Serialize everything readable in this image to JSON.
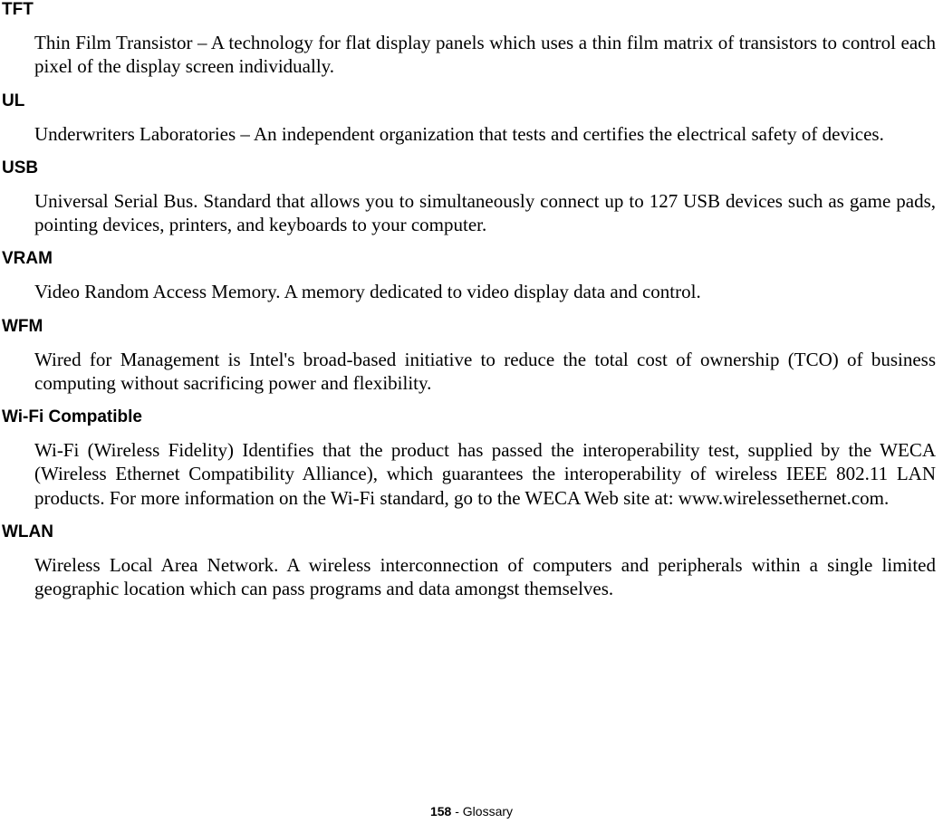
{
  "entries": [
    {
      "term": "TFT",
      "definition": "Thin Film Transistor – A technology for flat display panels which uses a thin film matrix of transistors to control each pixel of the display screen individually."
    },
    {
      "term": "UL",
      "definition": "Underwriters Laboratories – An independent organization that tests and certifies the electrical safety of devices."
    },
    {
      "term": "USB",
      "definition": "Universal Serial Bus. Standard that allows you to simultaneously connect up to 127 USB devices such as game pads, pointing devices, printers, and keyboards to your computer."
    },
    {
      "term": "VRAM",
      "definition": "Video Random Access Memory. A memory dedicated to video display data and control."
    },
    {
      "term": "WFM",
      "definition": "Wired for Management is Intel's broad-based initiative to reduce the total cost of ownership (TCO) of business computing without sacrificing power and flexibility."
    },
    {
      "term": "Wi-Fi Compatible",
      "definition": "Wi-Fi (Wireless Fidelity) Identifies that the product has passed the interoperability test, supplied by the WECA (Wireless Ethernet Compatibility Alliance), which guarantees the interoperability of wireless IEEE 802.11 LAN products. For more information on the Wi-Fi standard, go to the WECA Web site at: www.wirelessethernet.com."
    },
    {
      "term": "WLAN",
      "definition": "Wireless Local Area Network. A wireless interconnection of computers and peripherals within a single limited geographic location which can pass programs and data amongst themselves."
    }
  ],
  "footer": {
    "page_number": "158",
    "separator": " - ",
    "section": "Glossary"
  }
}
